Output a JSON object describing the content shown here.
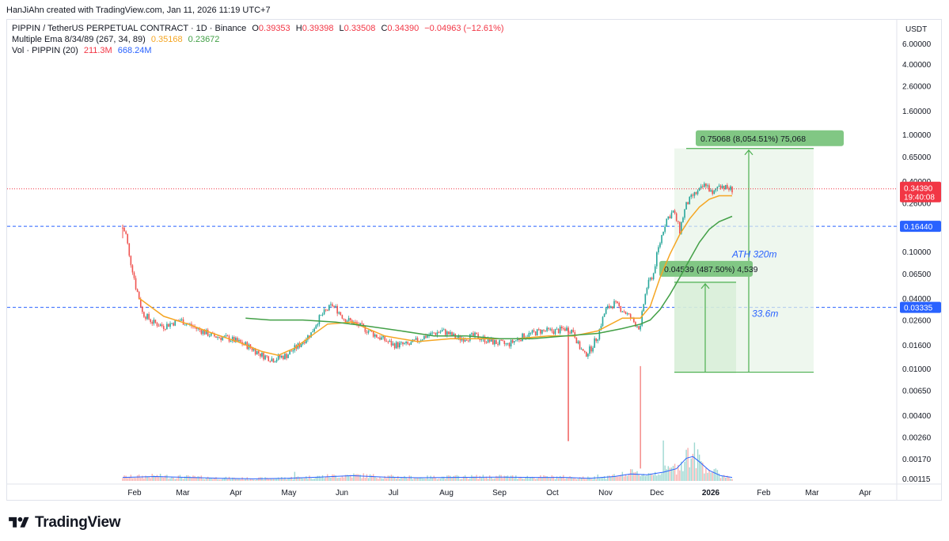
{
  "header": {
    "credit": "HanJiAhn created with TradingView.com, Jan 11, 2026 11:19 UTC+7"
  },
  "legend": {
    "symbol": "PIPPIN / TetherUS PERPETUAL CONTRACT · 1D · Binance",
    "o_label": "O",
    "o_value": "0.39353",
    "h_label": "H",
    "h_value": "0.39398",
    "l_label": "L",
    "l_value": "0.33508",
    "c_label": "C",
    "c_value": "0.34390",
    "change": "−0.04963 (−12.61%)",
    "ema_title": "Multiple Ema 8/34/89 (267, 34, 89)",
    "ema_v1": "0.35168",
    "ema_v2": "0.23672",
    "vol_title": "Vol · PIPPIN (20)",
    "vol_v1": "211.3M",
    "vol_v2": "668.24M"
  },
  "colors": {
    "up": "#26a69a",
    "down": "#ef5350",
    "ema_orange": "#f5a623",
    "ema_green": "#43a047",
    "vol_ma": "#2962ff",
    "price_line": "#f23645",
    "level_line": "#2962ff",
    "measure_fill": "#e7f4e7",
    "measure_line": "#4caf50"
  },
  "branding": {
    "logo_text": "TradingView"
  },
  "chart_data": {
    "type": "candlestick",
    "scale": "log",
    "currency": "USDT",
    "y_ticks": [
      "6.00000",
      "4.00000",
      "2.60000",
      "1.60000",
      "1.00000",
      "0.65000",
      "0.40000",
      "0.26000",
      "0.16000",
      "0.10000",
      "0.06500",
      "0.04000",
      "0.02600",
      "0.01600",
      "0.01000",
      "0.00650",
      "0.00400",
      "0.00260",
      "0.00170",
      "0.00115"
    ],
    "x_ticks": [
      "Feb",
      "Mar",
      "Apr",
      "May",
      "Jun",
      "Jul",
      "Aug",
      "Sep",
      "Oct",
      "Nov",
      "Dec",
      "2026",
      "Feb",
      "Mar",
      "Apr"
    ],
    "price_label": "0.34390",
    "price_countdown": "19:40:08",
    "level_labels": [
      "0.16440",
      "0.03335"
    ],
    "level_values": [
      0.1644,
      0.03335
    ],
    "annotations": [
      {
        "text": "ATH 320m",
        "value": 0.095
      },
      {
        "text": "33.6m",
        "value": 0.0295
      }
    ],
    "measures": [
      {
        "label": "0.75068 (8,054.51%) 75,068",
        "from": 0.00932,
        "to": 0.76
      },
      {
        "label": "0.04539 (487.50%) 4,539",
        "from": 0.00932,
        "to": 0.0547
      }
    ],
    "series": [
      {
        "name": "PIPPIN / TetherUS PERPETUAL CONTRACT",
        "kind": "candles",
        "close_path": [
          [
            0,
            0.16
          ],
          [
            2,
            0.14
          ],
          [
            4,
            0.09
          ],
          [
            8,
            0.05
          ],
          [
            12,
            0.03
          ],
          [
            18,
            0.025
          ],
          [
            25,
            0.023
          ],
          [
            35,
            0.026
          ],
          [
            45,
            0.022
          ],
          [
            55,
            0.019
          ],
          [
            65,
            0.018
          ],
          [
            75,
            0.016
          ],
          [
            85,
            0.013
          ],
          [
            92,
            0.012
          ],
          [
            100,
            0.013
          ],
          [
            108,
            0.016
          ],
          [
            115,
            0.02
          ],
          [
            120,
            0.027
          ],
          [
            128,
            0.035
          ],
          [
            135,
            0.027
          ],
          [
            145,
            0.023
          ],
          [
            155,
            0.019
          ],
          [
            165,
            0.016
          ],
          [
            175,
            0.016
          ],
          [
            185,
            0.019
          ],
          [
            195,
            0.021
          ],
          [
            205,
            0.018
          ],
          [
            215,
            0.019
          ],
          [
            225,
            0.017
          ],
          [
            235,
            0.016
          ],
          [
            245,
            0.019
          ],
          [
            255,
            0.021
          ],
          [
            265,
            0.021
          ],
          [
            270,
            0.022
          ],
          [
            275,
            0.021
          ],
          [
            278,
            0.016
          ],
          [
            282,
            0.013
          ],
          [
            286,
            0.015
          ],
          [
            290,
            0.019
          ],
          [
            295,
            0.032
          ],
          [
            300,
            0.036
          ],
          [
            306,
            0.031
          ],
          [
            312,
            0.025
          ],
          [
            316,
            0.022
          ],
          [
            320,
            0.05
          ],
          [
            324,
            0.065
          ],
          [
            328,
            0.12
          ],
          [
            332,
            0.19
          ],
          [
            336,
            0.22
          ],
          [
            340,
            0.15
          ],
          [
            344,
            0.25
          ],
          [
            348,
            0.3
          ],
          [
            352,
            0.33
          ],
          [
            356,
            0.38
          ],
          [
            360,
            0.3
          ],
          [
            364,
            0.38
          ],
          [
            368,
            0.35
          ],
          [
            372,
            0.34
          ]
        ]
      },
      {
        "name": "EMA 34",
        "kind": "line",
        "points": [
          [
            10,
            0.04
          ],
          [
            25,
            0.028
          ],
          [
            40,
            0.024
          ],
          [
            55,
            0.02
          ],
          [
            70,
            0.017
          ],
          [
            85,
            0.014
          ],
          [
            95,
            0.013
          ],
          [
            105,
            0.015
          ],
          [
            115,
            0.019
          ],
          [
            125,
            0.024
          ],
          [
            140,
            0.025
          ],
          [
            160,
            0.019
          ],
          [
            180,
            0.017
          ],
          [
            200,
            0.018
          ],
          [
            220,
            0.018
          ],
          [
            240,
            0.018
          ],
          [
            260,
            0.019
          ],
          [
            275,
            0.019
          ],
          [
            290,
            0.021
          ],
          [
            305,
            0.027
          ],
          [
            316,
            0.027
          ],
          [
            322,
            0.034
          ],
          [
            328,
            0.06
          ],
          [
            334,
            0.095
          ],
          [
            340,
            0.14
          ],
          [
            346,
            0.19
          ],
          [
            352,
            0.24
          ],
          [
            358,
            0.28
          ],
          [
            364,
            0.3
          ],
          [
            372,
            0.3
          ]
        ]
      },
      {
        "name": "EMA 89",
        "kind": "line",
        "points": [
          [
            75,
            0.027
          ],
          [
            90,
            0.026
          ],
          [
            110,
            0.026
          ],
          [
            130,
            0.025
          ],
          [
            150,
            0.023
          ],
          [
            170,
            0.021
          ],
          [
            190,
            0.019
          ],
          [
            210,
            0.019
          ],
          [
            230,
            0.018
          ],
          [
            250,
            0.018
          ],
          [
            270,
            0.019
          ],
          [
            290,
            0.02
          ],
          [
            305,
            0.022
          ],
          [
            316,
            0.024
          ],
          [
            322,
            0.026
          ],
          [
            328,
            0.032
          ],
          [
            334,
            0.043
          ],
          [
            340,
            0.06
          ],
          [
            346,
            0.085
          ],
          [
            352,
            0.12
          ],
          [
            358,
            0.155
          ],
          [
            364,
            0.18
          ],
          [
            372,
            0.2
          ]
        ]
      },
      {
        "name": "Vol MA (20)",
        "kind": "volume-line",
        "points": [
          [
            0,
            0.2
          ],
          [
            20,
            0.25
          ],
          [
            40,
            0.2
          ],
          [
            60,
            0.15
          ],
          [
            80,
            0.12
          ],
          [
            100,
            0.15
          ],
          [
            120,
            0.22
          ],
          [
            140,
            0.3
          ],
          [
            160,
            0.22
          ],
          [
            180,
            0.18
          ],
          [
            200,
            0.2
          ],
          [
            230,
            0.22
          ],
          [
            250,
            0.2
          ],
          [
            270,
            0.2
          ],
          [
            285,
            0.15
          ],
          [
            300,
            0.25
          ],
          [
            310,
            0.4
          ],
          [
            320,
            0.35
          ],
          [
            330,
            0.5
          ],
          [
            338,
            0.7
          ],
          [
            344,
            1.3
          ],
          [
            348,
            1.4
          ],
          [
            352,
            1.1
          ],
          [
            358,
            0.6
          ],
          [
            365,
            0.3
          ],
          [
            372,
            0.2
          ]
        ]
      }
    ]
  }
}
